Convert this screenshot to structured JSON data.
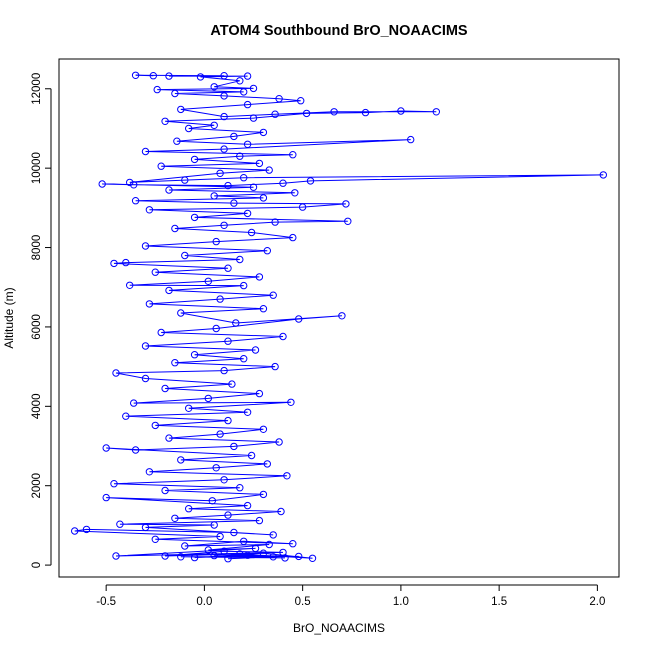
{
  "chart_data": {
    "type": "scatter",
    "title": "ATOM4 Southbound BrO_NOAACIMS",
    "xlabel": "BrO_NOAACIMS",
    "ylabel": "Altitude (m)",
    "x_ticks": [
      "-0.5",
      "0.0",
      "0.5",
      "1.0",
      "1.5",
      "2.0"
    ],
    "y_ticks": [
      "0",
      "2000",
      "4000",
      "6000",
      "8000",
      "10000",
      "12000"
    ],
    "xlim": [
      -0.74,
      2.11
    ],
    "ylim": [
      -300,
      12750
    ],
    "connect_points": true,
    "color": "#0000ff",
    "series": [
      {
        "points": [
          [
            0.12,
            160
          ],
          [
            0.35,
            210
          ],
          [
            0.05,
            240
          ],
          [
            0.41,
            180
          ],
          [
            -0.12,
            210
          ],
          [
            0.48,
            220
          ],
          [
            0.22,
            250
          ],
          [
            -0.05,
            190
          ],
          [
            0.3,
            300
          ],
          [
            0.55,
            170
          ],
          [
            0.18,
            280
          ],
          [
            -0.2,
            230
          ],
          [
            0.1,
            350
          ],
          [
            0.4,
            320
          ],
          [
            -0.45,
            230
          ],
          [
            0.26,
            420
          ],
          [
            0.02,
            380
          ],
          [
            0.33,
            520
          ],
          [
            -0.1,
            480
          ],
          [
            0.2,
            600
          ],
          [
            0.45,
            540
          ],
          [
            -0.25,
            650
          ],
          [
            0.08,
            720
          ],
          [
            -0.66,
            860
          ],
          [
            -0.6,
            900
          ],
          [
            0.15,
            820
          ],
          [
            0.35,
            760
          ],
          [
            -0.3,
            950
          ],
          [
            0.05,
            1010
          ],
          [
            -0.43,
            1030
          ],
          [
            0.28,
            1120
          ],
          [
            -0.15,
            1180
          ],
          [
            0.12,
            1260
          ],
          [
            0.39,
            1350
          ],
          [
            -0.08,
            1420
          ],
          [
            0.22,
            1500
          ],
          [
            -0.5,
            1700
          ],
          [
            0.04,
            1620
          ],
          [
            0.3,
            1780
          ],
          [
            -0.2,
            1880
          ],
          [
            0.18,
            1950
          ],
          [
            -0.46,
            2050
          ],
          [
            0.1,
            2150
          ],
          [
            0.42,
            2250
          ],
          [
            -0.28,
            2350
          ],
          [
            0.06,
            2450
          ],
          [
            0.32,
            2550
          ],
          [
            -0.12,
            2650
          ],
          [
            0.24,
            2760
          ],
          [
            -0.5,
            2950
          ],
          [
            -0.35,
            2900
          ],
          [
            0.15,
            2990
          ],
          [
            0.38,
            3100
          ],
          [
            -0.18,
            3200
          ],
          [
            0.08,
            3300
          ],
          [
            0.3,
            3420
          ],
          [
            -0.25,
            3520
          ],
          [
            0.12,
            3640
          ],
          [
            -0.4,
            3750
          ],
          [
            0.22,
            3850
          ],
          [
            -0.08,
            3950
          ],
          [
            0.44,
            4100
          ],
          [
            -0.36,
            4080
          ],
          [
            0.02,
            4200
          ],
          [
            0.28,
            4320
          ],
          [
            -0.2,
            4450
          ],
          [
            0.14,
            4560
          ],
          [
            -0.3,
            4700
          ],
          [
            -0.45,
            4840
          ],
          [
            0.1,
            4900
          ],
          [
            0.36,
            5000
          ],
          [
            -0.15,
            5100
          ],
          [
            0.2,
            5200
          ],
          [
            -0.05,
            5300
          ],
          [
            0.26,
            5420
          ],
          [
            -0.3,
            5520
          ],
          [
            0.12,
            5640
          ],
          [
            0.4,
            5760
          ],
          [
            -0.22,
            5860
          ],
          [
            0.06,
            5960
          ],
          [
            0.48,
            6200
          ],
          [
            0.7,
            6280
          ],
          [
            0.16,
            6100
          ],
          [
            -0.12,
            6350
          ],
          [
            0.3,
            6460
          ],
          [
            -0.28,
            6580
          ],
          [
            0.08,
            6700
          ],
          [
            0.35,
            6800
          ],
          [
            -0.18,
            6920
          ],
          [
            0.2,
            7040
          ],
          [
            -0.38,
            7050
          ],
          [
            0.02,
            7150
          ],
          [
            0.28,
            7260
          ],
          [
            -0.25,
            7380
          ],
          [
            0.12,
            7480
          ],
          [
            -0.46,
            7600
          ],
          [
            -0.4,
            7620
          ],
          [
            0.18,
            7700
          ],
          [
            -0.1,
            7800
          ],
          [
            0.32,
            7920
          ],
          [
            -0.3,
            8040
          ],
          [
            0.06,
            8150
          ],
          [
            0.45,
            8250
          ],
          [
            0.24,
            8380
          ],
          [
            -0.15,
            8480
          ],
          [
            0.1,
            8560
          ],
          [
            0.36,
            8640
          ],
          [
            0.73,
            8660
          ],
          [
            -0.05,
            8760
          ],
          [
            0.22,
            8860
          ],
          [
            -0.28,
            8950
          ],
          [
            0.5,
            9020
          ],
          [
            0.72,
            9100
          ],
          [
            0.15,
            9120
          ],
          [
            -0.35,
            9180
          ],
          [
            0.3,
            9250
          ],
          [
            0.05,
            9300
          ],
          [
            0.46,
            9380
          ],
          [
            -0.18,
            9450
          ],
          [
            0.25,
            9520
          ],
          [
            -0.52,
            9600
          ],
          [
            -0.36,
            9580
          ],
          [
            0.12,
            9560
          ],
          [
            0.4,
            9620
          ],
          [
            0.54,
            9680
          ],
          [
            2.03,
            9830
          ],
          [
            0.2,
            9760
          ],
          [
            -0.1,
            9700
          ],
          [
            -0.38,
            9640
          ],
          [
            0.08,
            9870
          ],
          [
            0.33,
            9950
          ],
          [
            -0.22,
            10050
          ],
          [
            0.28,
            10120
          ],
          [
            -0.05,
            10220
          ],
          [
            0.18,
            10300
          ],
          [
            0.45,
            10340
          ],
          [
            -0.3,
            10420
          ],
          [
            0.1,
            10480
          ],
          [
            1.05,
            10720
          ],
          [
            0.22,
            10600
          ],
          [
            -0.14,
            10680
          ],
          [
            0.15,
            10800
          ],
          [
            0.3,
            10900
          ],
          [
            -0.08,
            11000
          ],
          [
            0.05,
            11080
          ],
          [
            -0.2,
            11180
          ],
          [
            0.25,
            11260
          ],
          [
            0.52,
            11380
          ],
          [
            0.82,
            11400
          ],
          [
            1.0,
            11440
          ],
          [
            1.18,
            11420
          ],
          [
            0.66,
            11420
          ],
          [
            0.36,
            11360
          ],
          [
            0.1,
            11300
          ],
          [
            -0.12,
            11480
          ],
          [
            0.22,
            11600
          ],
          [
            0.49,
            11700
          ],
          [
            0.38,
            11750
          ],
          [
            0.1,
            11820
          ],
          [
            -0.15,
            11880
          ],
          [
            0.2,
            11920
          ],
          [
            -0.24,
            11980
          ],
          [
            0.25,
            12010
          ],
          [
            0.05,
            12050
          ],
          [
            0.18,
            12200
          ],
          [
            -0.02,
            12300
          ],
          [
            0.22,
            12320
          ],
          [
            -0.18,
            12320
          ],
          [
            0.1,
            12330
          ],
          [
            -0.35,
            12340
          ],
          [
            -0.26,
            12330
          ]
        ]
      }
    ]
  }
}
